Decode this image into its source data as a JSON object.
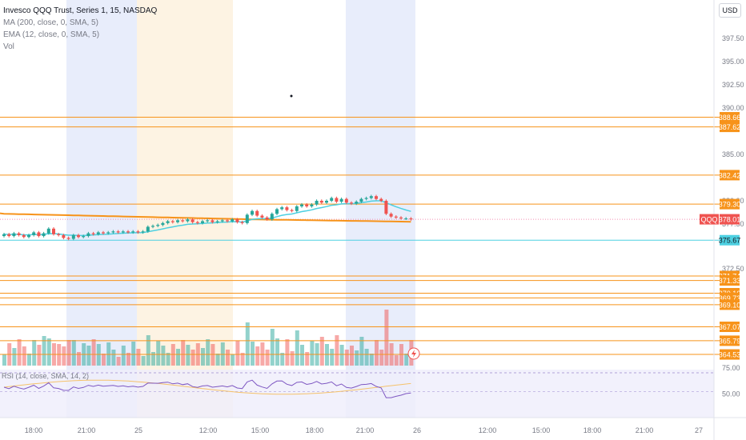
{
  "legend": {
    "title": "Invesco QQQ Trust, Series 1, 15, NASDAQ",
    "ma": "MA (200, close, 0, SMA, 5)",
    "ema": "EMA (12, close, 0, SMA, 5)",
    "vol": "Vol"
  },
  "currency": "USD",
  "rsi_label": "RSI (14, close, SMA, 14, 2)",
  "colors": {
    "up": "#26a69a",
    "down": "#ef5350",
    "level": "#f7931a",
    "ma": "#f7931a",
    "ema": "#4dd0e1",
    "rsi": "#7e57c2",
    "session_blue": "#e8edfb",
    "session_orange": "#fdf3e3"
  },
  "chart_data": {
    "type": "candlestick",
    "symbol": "QQQ",
    "last_price": "378.01",
    "price_axis_labels": [
      "397.50",
      "395.00",
      "392.50",
      "390.00",
      "385.00",
      "380.00",
      "377.50",
      "372.50"
    ],
    "price_axis_values": [
      397.5,
      395.0,
      392.5,
      390.0,
      385.0,
      380.0,
      377.5,
      372.5
    ],
    "levels": [
      {
        "label": "388.66",
        "value": 388.66
      },
      {
        "label": "387.62",
        "value": 387.62
      },
      {
        "label": "382.42",
        "value": 382.42
      },
      {
        "label": "379.30",
        "value": 379.3
      },
      {
        "label": "371.74",
        "value": 371.74
      },
      {
        "label": "371.33",
        "value": 371.33
      },
      {
        "label": "370.16",
        "value": 370.16
      },
      {
        "label": "369.73",
        "value": 369.73
      },
      {
        "label": "369.10",
        "value": 369.1
      },
      {
        "label": "367.07",
        "value": 367.07
      },
      {
        "label": "365.79",
        "value": 365.79
      },
      {
        "label": "364.53",
        "value": 364.53
      }
    ],
    "cyan_level": {
      "label": "375.67",
      "value": 375.67
    },
    "time_labels": [
      "18:00",
      "21:00",
      "25",
      "12:00",
      "15:00",
      "18:00",
      "21:00",
      "26",
      "12:00",
      "15:00",
      "18:00",
      "21:00",
      "27"
    ],
    "rsi_axis_labels": [
      "75.00",
      "50.00"
    ],
    "closes": [
      376.4,
      376.2,
      376.5,
      376.3,
      376.1,
      376.3,
      376.6,
      376.2,
      376.5,
      377.0,
      376.4,
      376.3,
      376.0,
      375.9,
      376.3,
      376.1,
      376.2,
      376.5,
      376.4,
      376.6,
      376.5,
      376.6,
      376.7,
      376.6,
      376.7,
      376.6,
      376.7,
      376.6,
      376.7,
      377.2,
      377.3,
      377.4,
      377.6,
      377.8,
      377.7,
      377.9,
      377.8,
      378.0,
      377.7,
      377.6,
      377.8,
      377.9,
      377.7,
      377.8,
      377.9,
      377.8,
      378.0,
      377.7,
      377.6,
      378.5,
      378.9,
      378.4,
      378.2,
      378.0,
      378.6,
      379.1,
      379.3,
      379.0,
      378.9,
      379.4,
      379.6,
      379.4,
      379.6,
      380.0,
      379.8,
      380.0,
      380.3,
      379.9,
      380.2,
      379.8,
      379.7,
      379.9,
      380.2,
      380.3,
      380.5,
      380.2,
      380.0,
      378.6,
      378.3,
      378.2,
      378.1,
      378.1,
      378.0
    ]
  }
}
